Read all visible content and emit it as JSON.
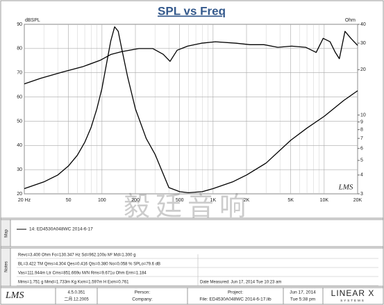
{
  "chart_data": {
    "type": "line",
    "title": "SPL vs Freq",
    "y_label": "dBSPL",
    "y2_label": "Ohm",
    "plot_logo": "LMS",
    "watermark": "毅廷音响",
    "xscale": "log",
    "xlim": [
      20,
      20000
    ],
    "xticks": [
      {
        "value": 20,
        "label": "20 Hz"
      },
      50,
      100,
      200,
      500,
      {
        "value": 1000,
        "label": "1K"
      },
      {
        "value": 2000,
        "label": "2K"
      },
      {
        "value": 5000,
        "label": "5K"
      },
      {
        "value": 10000,
        "label": "10K"
      },
      {
        "value": 20000,
        "label": "20K"
      }
    ],
    "xminorticks": [
      30,
      40,
      60,
      70,
      80,
      90,
      300,
      400,
      600,
      700,
      800,
      900,
      3000,
      4000,
      6000,
      7000,
      8000,
      9000
    ],
    "ylim": [
      20,
      90
    ],
    "yticks": [
      20,
      30,
      40,
      50,
      60,
      70,
      80,
      90
    ],
    "y2scale": "log",
    "y2lim": [
      3,
      40
    ],
    "y2ticks": [
      40,
      30,
      20,
      10,
      9,
      8,
      7,
      6,
      5,
      4,
      3
    ],
    "grid": true,
    "series": [
      {
        "color": "#000000",
        "x": [
          20,
          28,
          44,
          68,
          97,
          121,
          150,
          215,
          287,
          356,
          410,
          475,
          590,
          785,
          1050,
          1610,
          2150,
          2870,
          3830,
          5100,
          6830,
          8470,
          9800,
          11300,
          12600,
          13700,
          15400,
          17400,
          20000
        ],
        "values": [
          65.4,
          67.7,
          70.3,
          72.6,
          75.2,
          77.6,
          78.7,
          80,
          80,
          77.6,
          74.7,
          79.3,
          81,
          82.2,
          82.8,
          82.2,
          81.6,
          81.6,
          80.5,
          81,
          80.5,
          78.4,
          84.2,
          82.8,
          78.4,
          75.8,
          87.1,
          84.2,
          81.3
        ]
      },
      {
        "color": "#000000",
        "axis": "y2",
        "x": [
          20,
          30,
          40,
          50,
          60,
          70,
          80,
          90,
          100,
          110,
          120,
          130,
          140,
          150,
          170,
          200,
          250,
          300,
          400,
          500,
          600,
          800,
          1000,
          1500,
          2000,
          3000,
          5000,
          7000,
          10000,
          15000,
          20000
        ],
        "values": [
          3.25,
          3.6,
          4.0,
          4.6,
          5.4,
          6.6,
          8.3,
          11,
          15,
          22,
          31,
          38.5,
          36,
          28,
          18,
          11,
          7,
          5.5,
          3.3,
          3.1,
          3.05,
          3.1,
          3.25,
          3.6,
          4.0,
          4.8,
          6.8,
          8.2,
          9.8,
          12.5,
          14.5
        ]
      }
    ]
  },
  "map": {
    "label": "Map",
    "entries": [
      "14: ED4530A048WC  2014-6-17"
    ]
  },
  "notes": {
    "label": "Notes",
    "lines": [
      "Revc=3.400 Ohm  Fo=130.347 Hz  Sd=962.100u M²  Md=1.300 g",
      "BL=3.422 TM  Qms=4.304  Qes=0.416  Qts=0.380  No=0.058 %  SPLo=79.6 dB",
      "Vas=111.944m Ltr  Cms=851.669u M/N  Rms=9.671u Ohm  Erm=1.184",
      "Mms=1.751 g  Mmd=1.733m Kg  Kxm=1.597m H  Exm=0.761"
    ],
    "date_measured": "Date Measured: Jun 17, 2014  Tue 10:23 am"
  },
  "footer": {
    "logo": "LMS",
    "version": "4.5.0.351",
    "build": "二月.12.2005",
    "person": "Person:",
    "company": "Company:",
    "project": "Project:",
    "file": "File: ED4530A048WC  2014-6-17.lib",
    "date": "Jun 17, 2014",
    "time": "Tue  5:38 pm",
    "brand": "LINEAR X",
    "brand_sub": "SYSTEMS"
  }
}
